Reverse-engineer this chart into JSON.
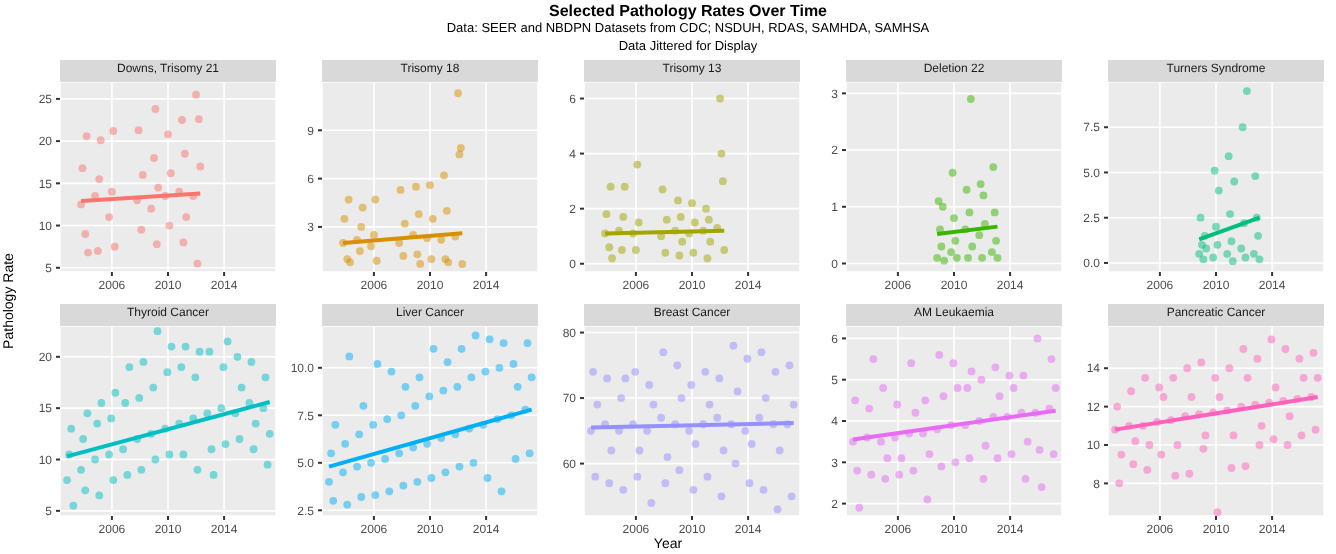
{
  "chart_data": [
    {
      "type": "scatter",
      "title": "Downs, Trisomy 21",
      "annotations": [
        "Selected Pathology Rates Over Time",
        "Data: SEER and NBDPN Datasets from CDC; NSDUH, RDAS, SAMHDA, SAMHSA",
        "Data Jittered for Display"
      ],
      "ylabel": "Pathology Rate",
      "xlim": [
        2002.3,
        2017.7
      ],
      "xticks": [
        2006,
        2010,
        2014
      ],
      "ylim": [
        4.5,
        27
      ],
      "yticks": [
        5,
        10,
        15,
        20,
        25
      ],
      "grid": true,
      "series": [
        {
          "marker": "circle",
          "color": "#F8766D",
          "x": [
            2003.8,
            2003.9,
            2004.1,
            2004.2,
            2004.3,
            2004.8,
            2005,
            2005.1,
            2005.2,
            2005.8,
            2006,
            2006.1,
            2006.2,
            2007.8,
            2007.9,
            2008.1,
            2008.2,
            2008.8,
            2009,
            2009.1,
            2009.2,
            2009.3,
            2009.8,
            2010,
            2010.1,
            2010.2,
            2010.8,
            2011,
            2011.1,
            2011.2,
            2011.3,
            2011.8,
            2012,
            2012.1,
            2012.2,
            2012.3
          ],
          "values": [
            12.5,
            16.8,
            9,
            20.6,
            6.8,
            13.5,
            7,
            15.5,
            20.1,
            11,
            14,
            21.2,
            7.5,
            13,
            21.3,
            9.5,
            16,
            12,
            18,
            23.8,
            7.8,
            14.5,
            13.5,
            20.8,
            10,
            16.2,
            14,
            22.5,
            8,
            18.5,
            11,
            13.5,
            25.5,
            5.5,
            22.6,
            17
          ]
        },
        {
          "type": "line",
          "marker": "none",
          "color": "#F8766D",
          "x": [
            2003.8,
            2012.3
          ],
          "values": [
            12.9,
            13.8
          ]
        }
      ]
    },
    {
      "type": "scatter",
      "title": "Trisomy 18",
      "xlim": [
        2002.3,
        2017.7
      ],
      "xticks": [
        2006,
        2010,
        2014
      ],
      "ylim": [
        0.2,
        12
      ],
      "yticks": [
        3,
        6,
        9
      ],
      "grid": true,
      "series": [
        {
          "marker": "circle",
          "color": "#D89000",
          "x": [
            2003.8,
            2003.9,
            2004.1,
            2004.2,
            2004.3,
            2004.8,
            2005,
            2005.1,
            2005.2,
            2005.8,
            2006,
            2006.1,
            2006.2,
            2007.8,
            2007.9,
            2008.1,
            2008.2,
            2008.8,
            2009,
            2009.1,
            2009.2,
            2009.3,
            2009.8,
            2010,
            2010.1,
            2010.2,
            2010.8,
            2011,
            2011.1,
            2011.2,
            2011.3,
            2011.8,
            2012,
            2012.1,
            2012.2,
            2012.3
          ],
          "values": [
            2,
            3.5,
            1,
            4.7,
            0.8,
            2.2,
            1.5,
            3,
            4.2,
            1.8,
            2.5,
            4.7,
            0.9,
            2,
            5.3,
            1.2,
            3.2,
            2.5,
            5.5,
            1.3,
            3.8,
            0.7,
            2.3,
            5.6,
            1,
            3.5,
            2.2,
            6.2,
            1,
            4,
            0.8,
            2.4,
            11.3,
            7.5,
            7.9,
            0.7
          ]
        },
        {
          "type": "line",
          "marker": "none",
          "color": "#D89000",
          "x": [
            2003.8,
            2012.3
          ],
          "values": [
            2.0,
            2.6
          ]
        }
      ]
    },
    {
      "type": "scatter",
      "title": "Trisomy 13",
      "xlim": [
        2002.3,
        2017.7
      ],
      "xticks": [
        2006,
        2010,
        2014
      ],
      "ylim": [
        -0.3,
        6.6
      ],
      "yticks": [
        0,
        2,
        4,
        6
      ],
      "grid": true,
      "series": [
        {
          "marker": "circle",
          "color": "#A3A500",
          "x": [
            2003.8,
            2003.9,
            2004.1,
            2004.2,
            2004.3,
            2004.8,
            2005,
            2005.1,
            2005.2,
            2005.8,
            2006,
            2006.1,
            2006.2,
            2007.8,
            2007.9,
            2008.1,
            2008.2,
            2008.8,
            2009,
            2009.1,
            2009.2,
            2009.3,
            2009.8,
            2010,
            2010.1,
            2010.2,
            2010.8,
            2011,
            2011.1,
            2011.2,
            2011.3,
            2011.8,
            2012,
            2012.1,
            2012.2,
            2012.3
          ],
          "values": [
            1.1,
            1.8,
            0.6,
            2.8,
            0.2,
            1.2,
            0.5,
            1.7,
            2.8,
            1.1,
            0.5,
            3.6,
            1.5,
            1.0,
            2.7,
            0.4,
            1.6,
            1.2,
            2.3,
            0.3,
            1.7,
            0.8,
            1.1,
            2.2,
            0.4,
            1.5,
            1.2,
            2.0,
            0.2,
            1.6,
            0.8,
            1.3,
            6.0,
            4.0,
            3.0,
            0.5
          ]
        },
        {
          "type": "line",
          "marker": "none",
          "color": "#A3A500",
          "x": [
            2003.8,
            2012.3
          ],
          "values": [
            1.1,
            1.2
          ]
        }
      ]
    },
    {
      "type": "scatter",
      "title": "Deletion 22",
      "xlim": [
        2002.3,
        2017.7
      ],
      "xticks": [
        2006,
        2010,
        2014
      ],
      "ylim": [
        -0.15,
        3.2
      ],
      "yticks": [
        0,
        1,
        2,
        3
      ],
      "grid": true,
      "series": [
        {
          "marker": "circle",
          "color": "#39B600",
          "x": [
            2008.8,
            2008.9,
            2009,
            2009.1,
            2009.2,
            2009.3,
            2009.8,
            2009.9,
            2010,
            2010.1,
            2010.2,
            2010.8,
            2010.9,
            2011,
            2011.1,
            2011.2,
            2011.3,
            2011.8,
            2011.9,
            2012,
            2012.1,
            2012.2,
            2012.7,
            2012.8,
            2012.9,
            2013,
            2013.1
          ],
          "values": [
            0.1,
            1.1,
            0.6,
            0.3,
            1.0,
            0.05,
            0.2,
            1.6,
            0.8,
            0.4,
            0.1,
            0.6,
            1.3,
            0.1,
            0.9,
            2.9,
            0.3,
            0.5,
            1.4,
            0.1,
            1.2,
            0.7,
            0.2,
            1.7,
            0.9,
            0.4,
            0.1
          ]
        },
        {
          "type": "line",
          "marker": "none",
          "color": "#39B600",
          "x": [
            2008.8,
            2013.1
          ],
          "values": [
            0.52,
            0.65
          ]
        }
      ]
    },
    {
      "type": "scatter",
      "title": "Turners Syndrome",
      "xlim": [
        2002.3,
        2017.7
      ],
      "xticks": [
        2006,
        2010,
        2014
      ],
      "ylim": [
        -0.5,
        10
      ],
      "yticks": [
        {
          "value": 0,
          "label": "0.0"
        },
        {
          "value": 2.5,
          "label": "2.5"
        },
        {
          "value": 5,
          "label": "5.0"
        },
        {
          "value": 7.5,
          "label": "7.5"
        }
      ],
      "grid": true,
      "series": [
        {
          "marker": "circle",
          "color": "#00BF7D",
          "x": [
            2008.8,
            2008.9,
            2009,
            2009.1,
            2009.2,
            2009.3,
            2009.8,
            2009.9,
            2010,
            2010.1,
            2010.2,
            2010.8,
            2010.9,
            2011,
            2011.1,
            2011.2,
            2011.3,
            2011.8,
            2011.9,
            2012,
            2012.1,
            2012.2,
            2012.7,
            2012.8,
            2012.9,
            2013,
            2013.1
          ],
          "values": [
            0.5,
            2.5,
            1,
            0.2,
            1.5,
            0.8,
            0.3,
            5.1,
            2,
            1,
            4,
            0.5,
            5.9,
            2.7,
            1.2,
            0.1,
            4.5,
            0.8,
            7.5,
            2.2,
            0.3,
            9.5,
            0.5,
            4.8,
            2.5,
            1.5,
            0.2
          ]
        },
        {
          "type": "line",
          "marker": "none",
          "color": "#00BF7D",
          "x": [
            2008.8,
            2013.1
          ],
          "values": [
            1.3,
            2.5
          ]
        }
      ]
    },
    {
      "type": "scatter",
      "title": "Thyroid Cancer",
      "xlim": [
        2002.3,
        2017.7
      ],
      "xticks": [
        2006,
        2010,
        2014
      ],
      "ylim": [
        4.5,
        23
      ],
      "yticks": [
        5,
        10,
        15,
        20
      ],
      "grid": true,
      "series": [
        {
          "marker": "circle",
          "color": "#00BFC4",
          "x": [
            2002.8,
            2002.95,
            2003.1,
            2003.25,
            2003.8,
            2003.95,
            2004.1,
            2004.25,
            2004.8,
            2004.95,
            2005.1,
            2005.25,
            2005.8,
            2005.95,
            2006.1,
            2006.25,
            2006.8,
            2006.95,
            2007.1,
            2007.25,
            2007.8,
            2007.95,
            2008.1,
            2008.25,
            2008.8,
            2008.95,
            2009.1,
            2009.25,
            2009.8,
            2009.95,
            2010.1,
            2010.25,
            2010.8,
            2010.95,
            2011.1,
            2011.25,
            2011.8,
            2011.95,
            2012.1,
            2012.25,
            2012.8,
            2012.95,
            2013.1,
            2013.25,
            2013.8,
            2013.95,
            2014.1,
            2014.25,
            2014.8,
            2014.95,
            2015.1,
            2015.25,
            2015.8,
            2015.95,
            2016.1,
            2016.25,
            2016.8,
            2016.95,
            2017.1,
            2017.25
          ],
          "values": [
            8,
            10.5,
            13,
            5.5,
            9,
            12,
            7,
            14.5,
            10,
            13.5,
            6.5,
            15.5,
            10.5,
            14,
            8,
            16.5,
            11,
            15.5,
            8.5,
            19,
            12,
            16,
            9,
            19.5,
            12.5,
            17,
            10,
            22.5,
            13,
            18.5,
            10.5,
            21,
            13.5,
            19,
            10.5,
            21,
            14,
            18,
            9,
            20.5,
            14.5,
            20.5,
            11,
            8.5,
            15,
            19,
            11.5,
            21.5,
            14.5,
            20,
            12,
            17,
            15.5,
            19.5,
            11,
            13.5,
            15,
            18,
            9.5,
            12.5
          ]
        },
        {
          "type": "line",
          "marker": "none",
          "color": "#00BFC4",
          "x": [
            2002.8,
            2017.25
          ],
          "values": [
            10.3,
            15.6
          ]
        }
      ]
    },
    {
      "type": "scatter",
      "title": "Liver Cancer",
      "xlim": [
        2002.3,
        2017.7
      ],
      "xticks": [
        2006,
        2010,
        2014
      ],
      "ylim": [
        2.2,
        12.2
      ],
      "yticks": [
        2.5,
        {
          "value": 5,
          "label": "5.0"
        },
        7.5,
        {
          "value": 10,
          "label": "10.0"
        }
      ],
      "grid": true,
      "series": [
        {
          "marker": "circle",
          "color": "#00B0F6",
          "x": [
            2002.8,
            2002.95,
            2003.1,
            2003.25,
            2003.8,
            2003.95,
            2004.1,
            2004.25,
            2004.8,
            2004.95,
            2005.1,
            2005.25,
            2005.8,
            2005.95,
            2006.1,
            2006.25,
            2006.8,
            2006.95,
            2007.1,
            2007.25,
            2007.8,
            2007.95,
            2008.1,
            2008.25,
            2008.8,
            2008.95,
            2009.1,
            2009.25,
            2009.8,
            2009.95,
            2010.1,
            2010.25,
            2010.8,
            2010.95,
            2011.1,
            2011.25,
            2011.8,
            2011.95,
            2012.1,
            2012.25,
            2012.8,
            2012.95,
            2013.1,
            2013.25,
            2013.8,
            2013.95,
            2014.1,
            2014.25,
            2014.8,
            2014.95,
            2015.1,
            2015.25,
            2015.8,
            2015.95,
            2016.1,
            2016.25,
            2016.8,
            2016.95,
            2017.1,
            2017.25
          ],
          "values": [
            4,
            5.5,
            3,
            7,
            4.5,
            6,
            2.8,
            10.6,
            4.8,
            6.5,
            3.2,
            8,
            5,
            7,
            3.3,
            10.2,
            5.2,
            7.3,
            3.5,
            9.8,
            5.5,
            7.5,
            3.8,
            9,
            5.8,
            8,
            4,
            9.5,
            6,
            8.5,
            4.2,
            11,
            6.3,
            8.8,
            4.5,
            10.3,
            6.5,
            9,
            4.8,
            11,
            6.8,
            9.5,
            5,
            11.7,
            7,
            9.8,
            4.2,
            11.5,
            7.3,
            10,
            3.5,
            11.3,
            7.5,
            10.2,
            5.2,
            9,
            7.8,
            11.3,
            5.5,
            9.5
          ]
        },
        {
          "type": "line",
          "marker": "none",
          "color": "#00B0F6",
          "x": [
            2002.8,
            2017.25
          ],
          "values": [
            4.8,
            7.8
          ]
        }
      ]
    },
    {
      "type": "scatter",
      "title": "Breast Cancer",
      "xlabel": "Year",
      "xlim": [
        2002.3,
        2017.7
      ],
      "xticks": [
        2006,
        2010,
        2014
      ],
      "ylim": [
        52,
        81
      ],
      "yticks": [
        60,
        70,
        80
      ],
      "grid": true,
      "series": [
        {
          "marker": "circle",
          "color": "#9590FF",
          "x": [
            2002.8,
            2002.95,
            2003.1,
            2003.25,
            2003.8,
            2003.95,
            2004.1,
            2004.25,
            2004.8,
            2004.95,
            2005.1,
            2005.25,
            2005.8,
            2005.95,
            2006.1,
            2006.25,
            2006.8,
            2006.95,
            2007.1,
            2007.25,
            2007.8,
            2007.95,
            2008.1,
            2008.25,
            2008.8,
            2008.95,
            2009.1,
            2009.25,
            2009.8,
            2009.95,
            2010.1,
            2010.25,
            2010.8,
            2010.95,
            2011.1,
            2011.25,
            2011.8,
            2011.95,
            2012.1,
            2012.25,
            2012.8,
            2012.95,
            2013.1,
            2013.25,
            2013.8,
            2013.95,
            2014.1,
            2014.25,
            2014.8,
            2014.95,
            2015.1,
            2015.25,
            2015.8,
            2015.95,
            2016.1,
            2016.25,
            2016.8,
            2016.95,
            2017.1,
            2017.25
          ],
          "values": [
            65,
            74,
            58,
            69,
            66,
            73,
            57,
            62,
            65,
            70,
            56,
            73,
            66,
            74,
            58,
            62,
            65,
            72,
            54,
            69,
            67,
            77,
            57,
            61,
            66,
            75,
            59,
            70,
            65,
            72,
            56,
            63,
            66,
            74,
            58,
            69,
            67,
            73,
            55,
            62,
            66,
            78,
            60,
            71,
            65,
            76,
            57,
            63,
            67,
            77,
            56,
            70,
            66,
            74,
            53,
            62,
            66,
            75,
            55,
            69
          ]
        },
        {
          "type": "line",
          "marker": "none",
          "color": "#9590FF",
          "x": [
            2002.8,
            2017.25
          ],
          "values": [
            65.5,
            66.2
          ]
        }
      ]
    },
    {
      "type": "scatter",
      "title": "AM Leukaemia",
      "xlim": [
        2002.3,
        2017.7
      ],
      "xticks": [
        2006,
        2010,
        2014
      ],
      "ylim": [
        1.7,
        6.3
      ],
      "yticks": [
        2,
        3,
        4,
        5,
        6
      ],
      "grid": true,
      "series": [
        {
          "marker": "circle",
          "color": "#E76BF3",
          "x": [
            2002.8,
            2002.95,
            2003.1,
            2003.25,
            2003.8,
            2003.95,
            2004.1,
            2004.25,
            2004.8,
            2004.95,
            2005.1,
            2005.25,
            2005.8,
            2005.95,
            2006.1,
            2006.25,
            2006.8,
            2006.95,
            2007.1,
            2007.25,
            2007.8,
            2007.95,
            2008.1,
            2008.25,
            2008.8,
            2008.95,
            2009.1,
            2009.25,
            2009.8,
            2009.95,
            2010.1,
            2010.25,
            2010.8,
            2010.95,
            2011.1,
            2011.25,
            2011.8,
            2011.95,
            2012.1,
            2012.25,
            2012.8,
            2012.95,
            2013.1,
            2013.25,
            2013.8,
            2013.95,
            2014.1,
            2014.25,
            2014.8,
            2014.95,
            2015.1,
            2015.25,
            2015.8,
            2015.95,
            2016.1,
            2016.25,
            2016.8,
            2016.95,
            2017.1,
            2017.25
          ],
          "values": [
            3.5,
            4.5,
            2.8,
            1.9,
            3.6,
            4.3,
            2.7,
            5.5,
            3.5,
            4.8,
            2.6,
            3.1,
            3.6,
            4.4,
            2.7,
            3.1,
            3.7,
            5.4,
            2.8,
            4.2,
            3.7,
            4.5,
            2.1,
            3.2,
            3.8,
            5.6,
            2.9,
            4.6,
            3.9,
            5.4,
            3,
            4.8,
            3.9,
            4.8,
            3.1,
            5.2,
            4,
            5,
            2.6,
            3.4,
            4.1,
            5.3,
            3.1,
            4.6,
            4.1,
            5.1,
            3.2,
            4.8,
            4.2,
            5.1,
            2.6,
            3.5,
            4.2,
            6,
            3.3,
            2.4,
            4.3,
            5.5,
            3.2,
            4.8
          ]
        },
        {
          "type": "line",
          "marker": "none",
          "color": "#E76BF3",
          "x": [
            2002.8,
            2017.25
          ],
          "values": [
            3.55,
            4.25
          ]
        }
      ]
    },
    {
      "type": "scatter",
      "title": "Pancreatic Cancer",
      "xlim": [
        2002.3,
        2017.7
      ],
      "xticks": [
        2006,
        2010,
        2014
      ],
      "ylim": [
        6.3,
        16.2
      ],
      "yticks": [
        8,
        10,
        12,
        14
      ],
      "grid": true,
      "series": [
        {
          "marker": "circle",
          "color": "#FF62BC",
          "x": [
            2002.8,
            2002.95,
            2003.1,
            2003.25,
            2003.8,
            2003.95,
            2004.1,
            2004.25,
            2004.8,
            2004.95,
            2005.1,
            2005.25,
            2005.8,
            2005.95,
            2006.1,
            2006.25,
            2006.8,
            2006.95,
            2007.1,
            2007.25,
            2007.8,
            2007.95,
            2008.1,
            2008.25,
            2008.8,
            2008.95,
            2009.1,
            2009.25,
            2009.8,
            2009.95,
            2010.1,
            2010.25,
            2010.8,
            2010.95,
            2011.1,
            2011.25,
            2011.8,
            2011.95,
            2012.1,
            2012.25,
            2012.8,
            2012.95,
            2013.1,
            2013.25,
            2013.8,
            2013.95,
            2014.1,
            2014.25,
            2014.8,
            2014.95,
            2015.1,
            2015.25,
            2015.8,
            2015.95,
            2016.1,
            2016.25,
            2016.8,
            2016.95,
            2017.1,
            2017.25
          ],
          "values": [
            10.8,
            12,
            8,
            9.5,
            11,
            12.8,
            9,
            10.2,
            11,
            13.5,
            8.7,
            10,
            11.2,
            13,
            9.5,
            12.5,
            11.3,
            13.5,
            8.4,
            10,
            11.5,
            14,
            8.5,
            12.5,
            11.6,
            14.3,
            9.8,
            10.5,
            11.7,
            13.5,
            6.5,
            12.5,
            11.8,
            14,
            8.8,
            10.5,
            12,
            15,
            8.9,
            13.5,
            12.1,
            14.5,
            10,
            11,
            12.2,
            15.5,
            10.3,
            13,
            12.3,
            15,
            10,
            11.5,
            12.4,
            14.5,
            10.5,
            13.5,
            12.5,
            14.8,
            10.8,
            13.5
          ]
        },
        {
          "type": "line",
          "marker": "none",
          "color": "#FF62BC",
          "x": [
            2002.8,
            2017.25
          ],
          "values": [
            10.8,
            12.5
          ]
        }
      ]
    }
  ]
}
